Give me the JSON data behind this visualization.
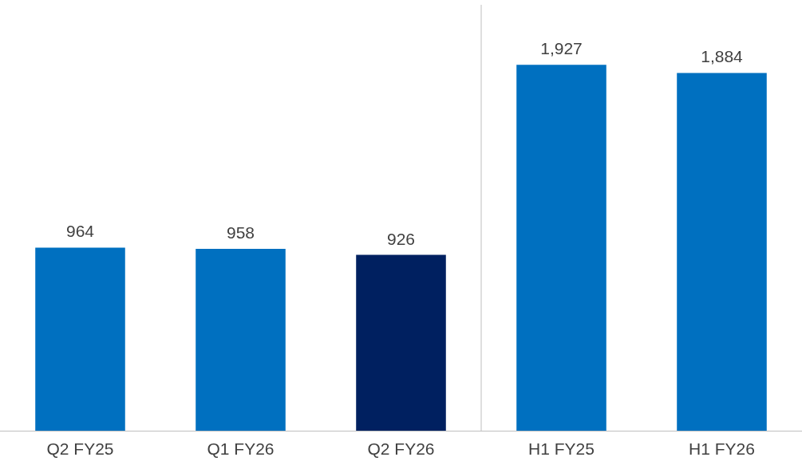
{
  "chart_data": {
    "type": "bar",
    "categories": [
      "Q2 FY25",
      "Q1 FY26",
      "Q2 FY26",
      "H1 FY25",
      "H1 FY26"
    ],
    "values": [
      964,
      958,
      926,
      1927,
      1884
    ],
    "value_labels": [
      "964",
      "958",
      "926",
      "1,927",
      "1,884"
    ],
    "colors": [
      "#0070c0",
      "#0070c0",
      "#002060",
      "#0070c0",
      "#0070c0"
    ]
  }
}
